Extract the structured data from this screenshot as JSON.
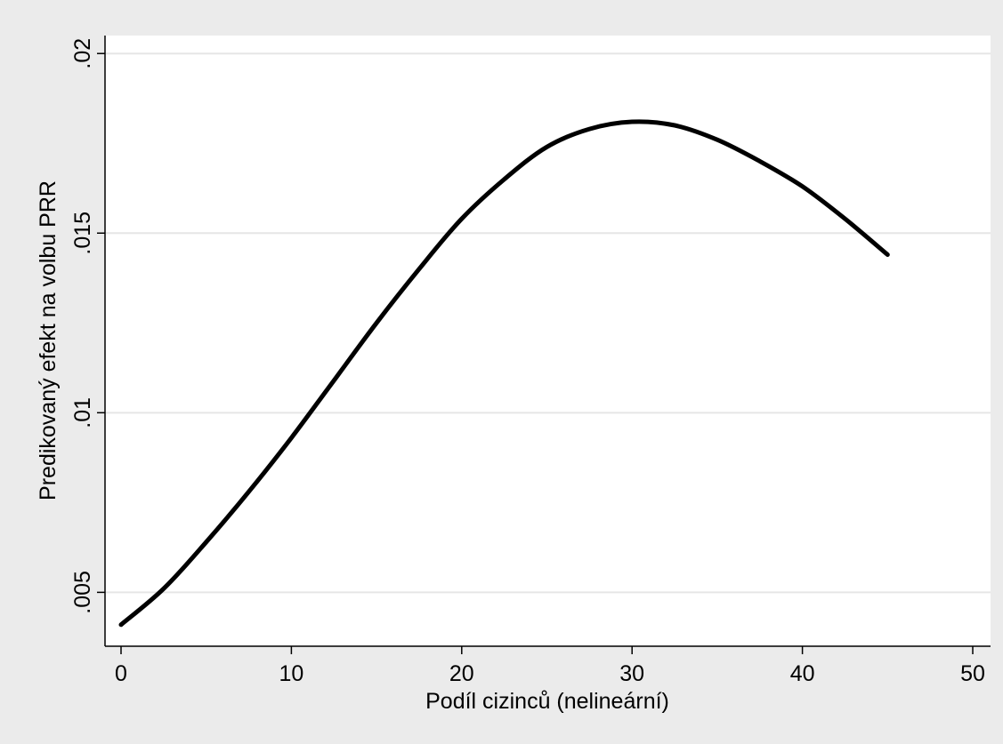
{
  "chart_data": {
    "type": "line",
    "title": "",
    "xlabel": "Podíl cizinců (nelineární)",
    "ylabel": "Predikovaný efekt na volbu PRR",
    "xlim": [
      0,
      50
    ],
    "ylim": [
      0.0035,
      0.0205
    ],
    "x_ticks": [
      0,
      10,
      20,
      30,
      40,
      50
    ],
    "x_tick_labels": [
      "0",
      "10",
      "20",
      "30",
      "40",
      "50"
    ],
    "y_ticks": [
      0.005,
      0.01,
      0.015,
      0.02
    ],
    "y_tick_labels": [
      ".005",
      ".01",
      ".015",
      ".02"
    ],
    "grid": "horizontal",
    "series": [
      {
        "color": "#000000",
        "x": [
          0,
          2.5,
          5,
          7.5,
          10,
          12.5,
          15,
          17.5,
          20,
          22.5,
          25,
          27.5,
          30,
          32.5,
          35,
          37.5,
          40,
          42.5,
          45
        ],
        "y": [
          0.0041,
          0.0051,
          0.0064,
          0.0078,
          0.0093,
          0.0109,
          0.0125,
          0.014,
          0.0154,
          0.0165,
          0.0174,
          0.0179,
          0.0181,
          0.018,
          0.0176,
          0.017,
          0.0163,
          0.0154,
          0.0144
        ]
      }
    ]
  }
}
